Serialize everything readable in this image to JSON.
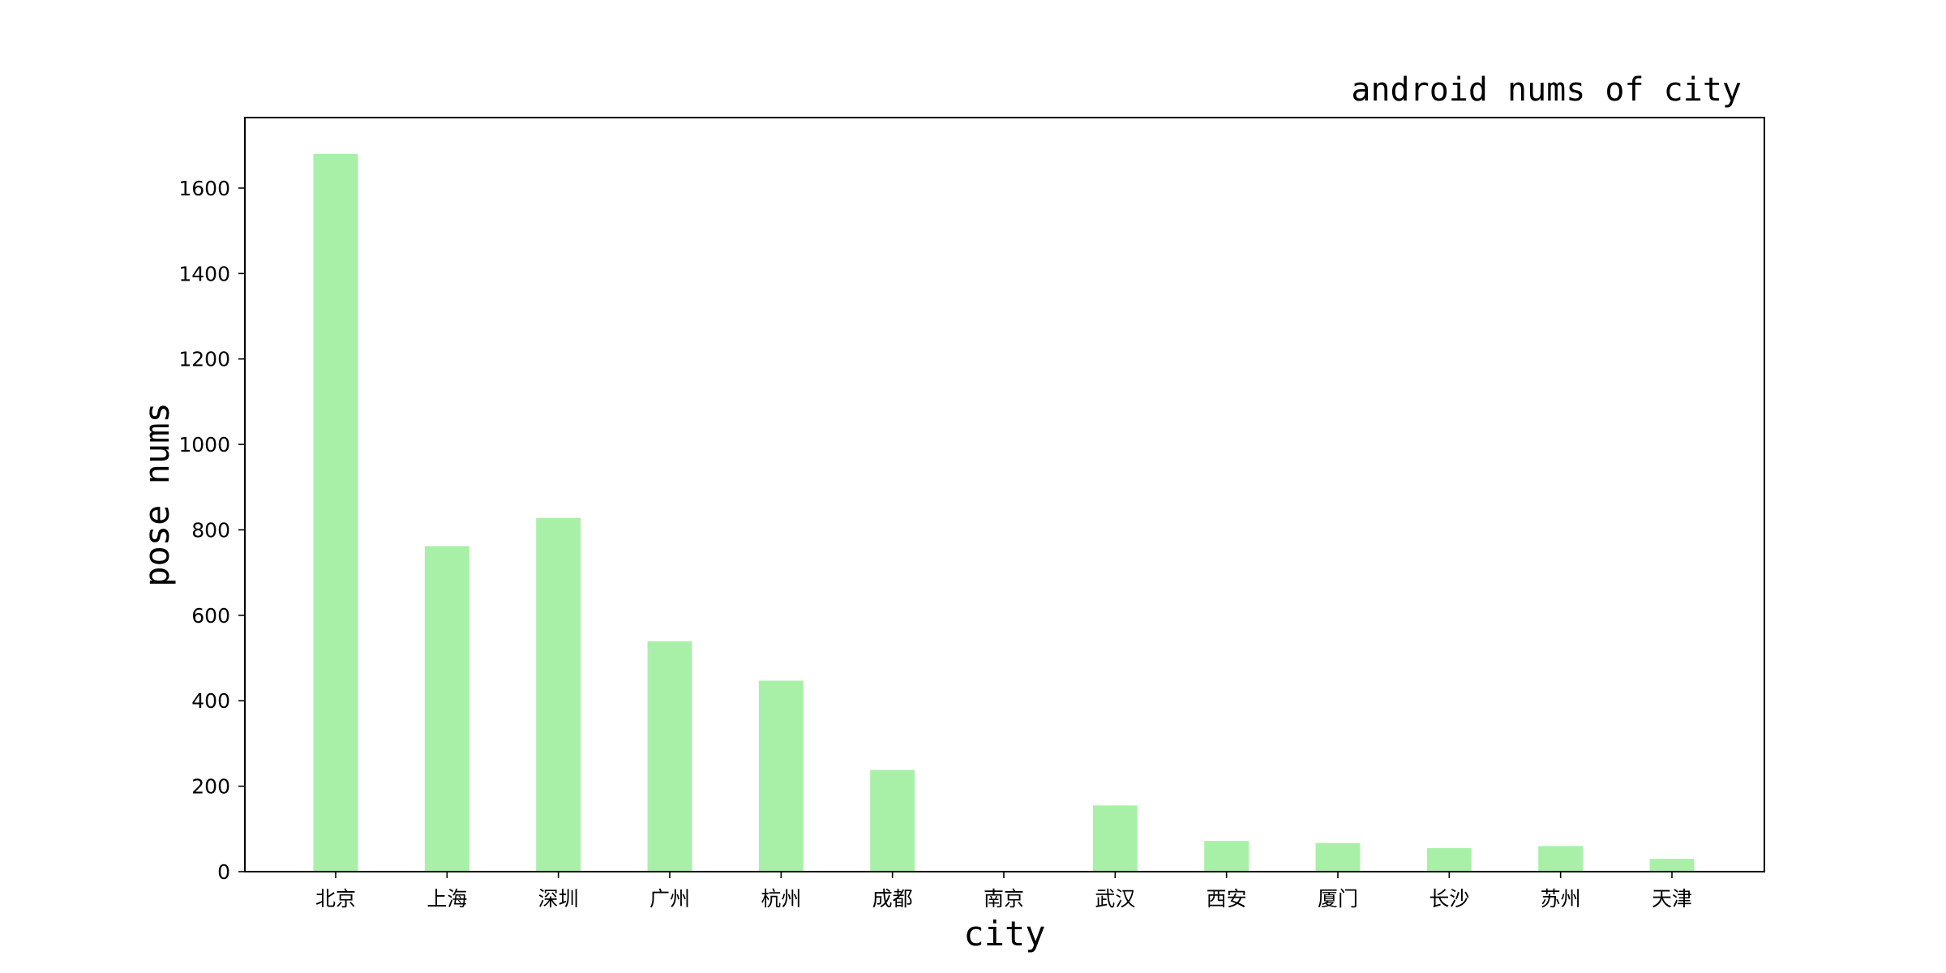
{
  "chart_data": {
    "type": "bar",
    "title": "android nums of city",
    "xlabel": "city",
    "ylabel": "pose nums",
    "categories": [
      "北京",
      "上海",
      "深圳",
      "广州",
      "杭州",
      "成都",
      "南京",
      "武汉",
      "西安",
      "厦门",
      "长沙",
      "苏州",
      "天津"
    ],
    "values": [
      1680,
      762,
      828,
      539,
      447,
      238,
      0,
      155,
      72,
      67,
      55,
      60,
      30
    ],
    "ylim": [
      0,
      1765
    ],
    "yticks": [
      0,
      200,
      400,
      600,
      800,
      1000,
      1200,
      1400,
      1600
    ],
    "grid": false,
    "legend": "none",
    "bar_color": "#a8f0a8"
  }
}
